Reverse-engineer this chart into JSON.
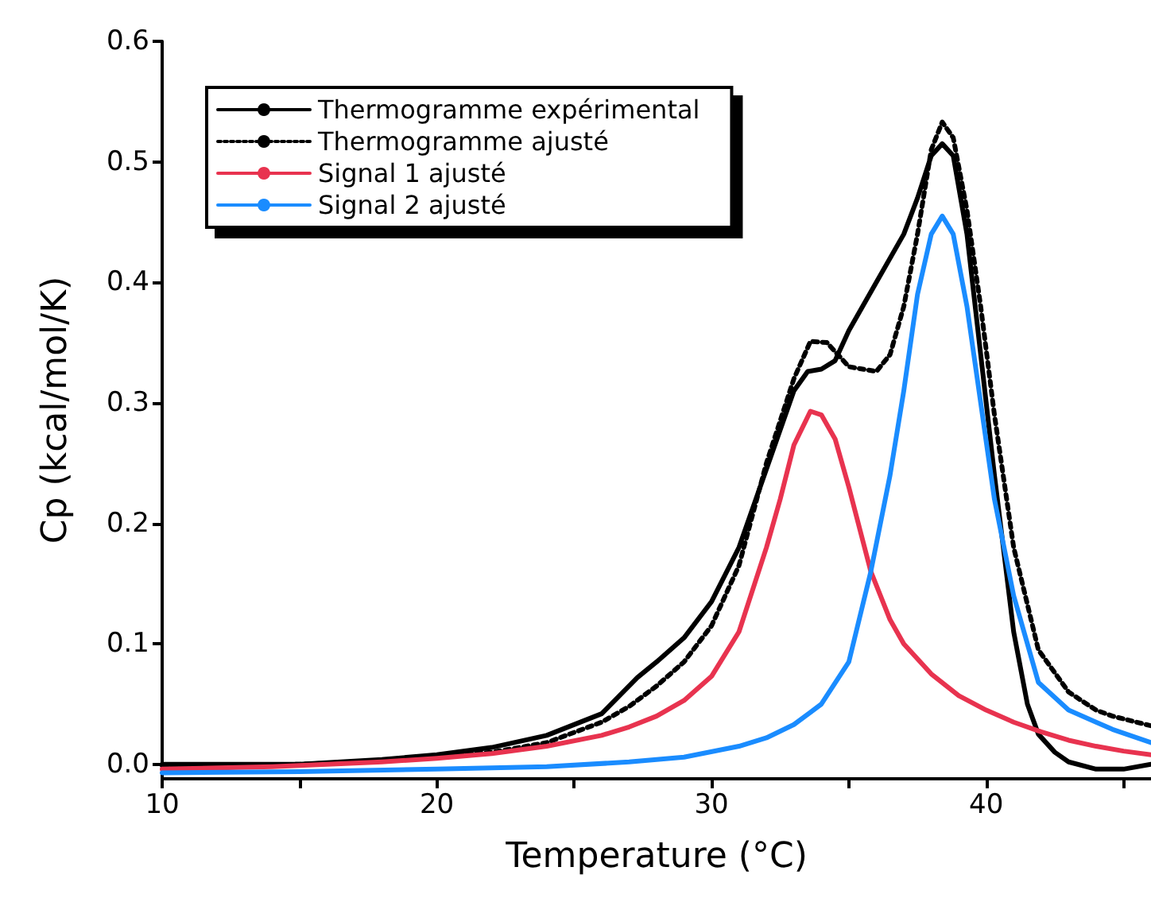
{
  "chart_data": {
    "type": "line",
    "xlabel": "Temperature (°C)",
    "ylabel": "Cp (kcal/mol/K)",
    "xlim": [
      10,
      46
    ],
    "ylim": [
      -0.012,
      0.6
    ],
    "xticks": [
      10,
      {
        "value": 15,
        "label": null
      },
      20,
      {
        "value": 25,
        "label": null
      },
      30,
      {
        "value": 35,
        "label": null
      },
      40,
      {
        "value": 45,
        "label": null
      }
    ],
    "yticks": [
      {
        "value": 0,
        "label": "0.0"
      },
      {
        "value": 0.1,
        "label": "0.1"
      },
      {
        "value": 0.2,
        "label": "0.2"
      },
      {
        "value": 0.3,
        "label": "0.3"
      },
      {
        "value": 0.4,
        "label": "0.4"
      },
      {
        "value": 0.5,
        "label": "0.5"
      },
      {
        "value": 0.6,
        "label": "0.6"
      }
    ],
    "grid": false,
    "legend": "top left",
    "marker": "none",
    "series": [
      {
        "name": "Thermogramme expérimental",
        "color": "#000000",
        "line_style": "solid",
        "x": [
          10,
          15,
          18,
          20,
          22,
          24,
          26,
          27.3,
          28,
          29,
          30,
          31,
          32,
          33,
          33.5,
          34,
          34.5,
          35,
          36,
          37,
          37.5,
          38,
          38.4,
          38.8,
          39.3,
          39.8,
          40.3,
          41,
          41.5,
          41.9,
          42.5,
          43,
          44,
          45,
          46
        ],
        "values": [
          0,
          0,
          0.004,
          0.008,
          0.014,
          0.024,
          0.042,
          0.072,
          0.085,
          0.105,
          0.135,
          0.18,
          0.245,
          0.31,
          0.326,
          0.328,
          0.335,
          0.36,
          0.4,
          0.44,
          0.47,
          0.505,
          0.515,
          0.505,
          0.44,
          0.34,
          0.24,
          0.11,
          0.05,
          0.025,
          0.01,
          0.002,
          -0.004,
          -0.004,
          0
        ]
      },
      {
        "name": "Thermogramme ajusté",
        "color": "#000000",
        "line_style": "dotted",
        "x": [
          10,
          15,
          18,
          20,
          22,
          24,
          26,
          27,
          28,
          29,
          30,
          31,
          32,
          33,
          33.6,
          34.2,
          35,
          36,
          36.5,
          37,
          37.5,
          38,
          38.4,
          38.8,
          39.3,
          39.8,
          40.3,
          41,
          41.9,
          43,
          44,
          44.6,
          46
        ],
        "values": [
          -0.001,
          0,
          0.003,
          0.006,
          0.01,
          0.018,
          0.035,
          0.048,
          0.065,
          0.085,
          0.115,
          0.165,
          0.25,
          0.32,
          0.351,
          0.35,
          0.33,
          0.326,
          0.34,
          0.38,
          0.44,
          0.51,
          0.533,
          0.52,
          0.46,
          0.38,
          0.29,
          0.18,
          0.095,
          0.06,
          0.045,
          0.04,
          0.032
        ]
      },
      {
        "name": "Signal 1 ajusté",
        "color": "#e8334f",
        "line_style": "solid",
        "x": [
          10,
          14,
          18,
          20,
          22,
          24,
          26,
          27,
          28,
          29,
          30,
          31,
          32,
          32.5,
          33,
          33.6,
          34,
          34.5,
          35,
          35.8,
          36.5,
          37,
          38,
          39,
          40,
          41,
          42,
          43,
          44,
          45,
          46
        ],
        "values": [
          -0.004,
          -0.002,
          0.002,
          0.005,
          0.009,
          0.015,
          0.024,
          0.031,
          0.04,
          0.053,
          0.073,
          0.11,
          0.18,
          0.22,
          0.265,
          0.293,
          0.29,
          0.27,
          0.23,
          0.16,
          0.12,
          0.1,
          0.075,
          0.057,
          0.045,
          0.035,
          0.027,
          0.02,
          0.015,
          0.011,
          0.008
        ]
      },
      {
        "name": "Signal 2 ajusté",
        "color": "#1a8cff",
        "line_style": "solid",
        "x": [
          10,
          15,
          20,
          24,
          27,
          29,
          31,
          32,
          33,
          34,
          35,
          35.8,
          36.5,
          37,
          37.5,
          38,
          38.4,
          38.8,
          39.3,
          39.8,
          40.3,
          41,
          41.9,
          43,
          44,
          44.6,
          46
        ],
        "values": [
          -0.007,
          -0.006,
          -0.004,
          -0.002,
          0.002,
          0.006,
          0.015,
          0.022,
          0.033,
          0.05,
          0.085,
          0.16,
          0.24,
          0.31,
          0.39,
          0.44,
          0.455,
          0.44,
          0.38,
          0.3,
          0.22,
          0.14,
          0.068,
          0.045,
          0.035,
          0.029,
          0.018
        ]
      }
    ]
  }
}
